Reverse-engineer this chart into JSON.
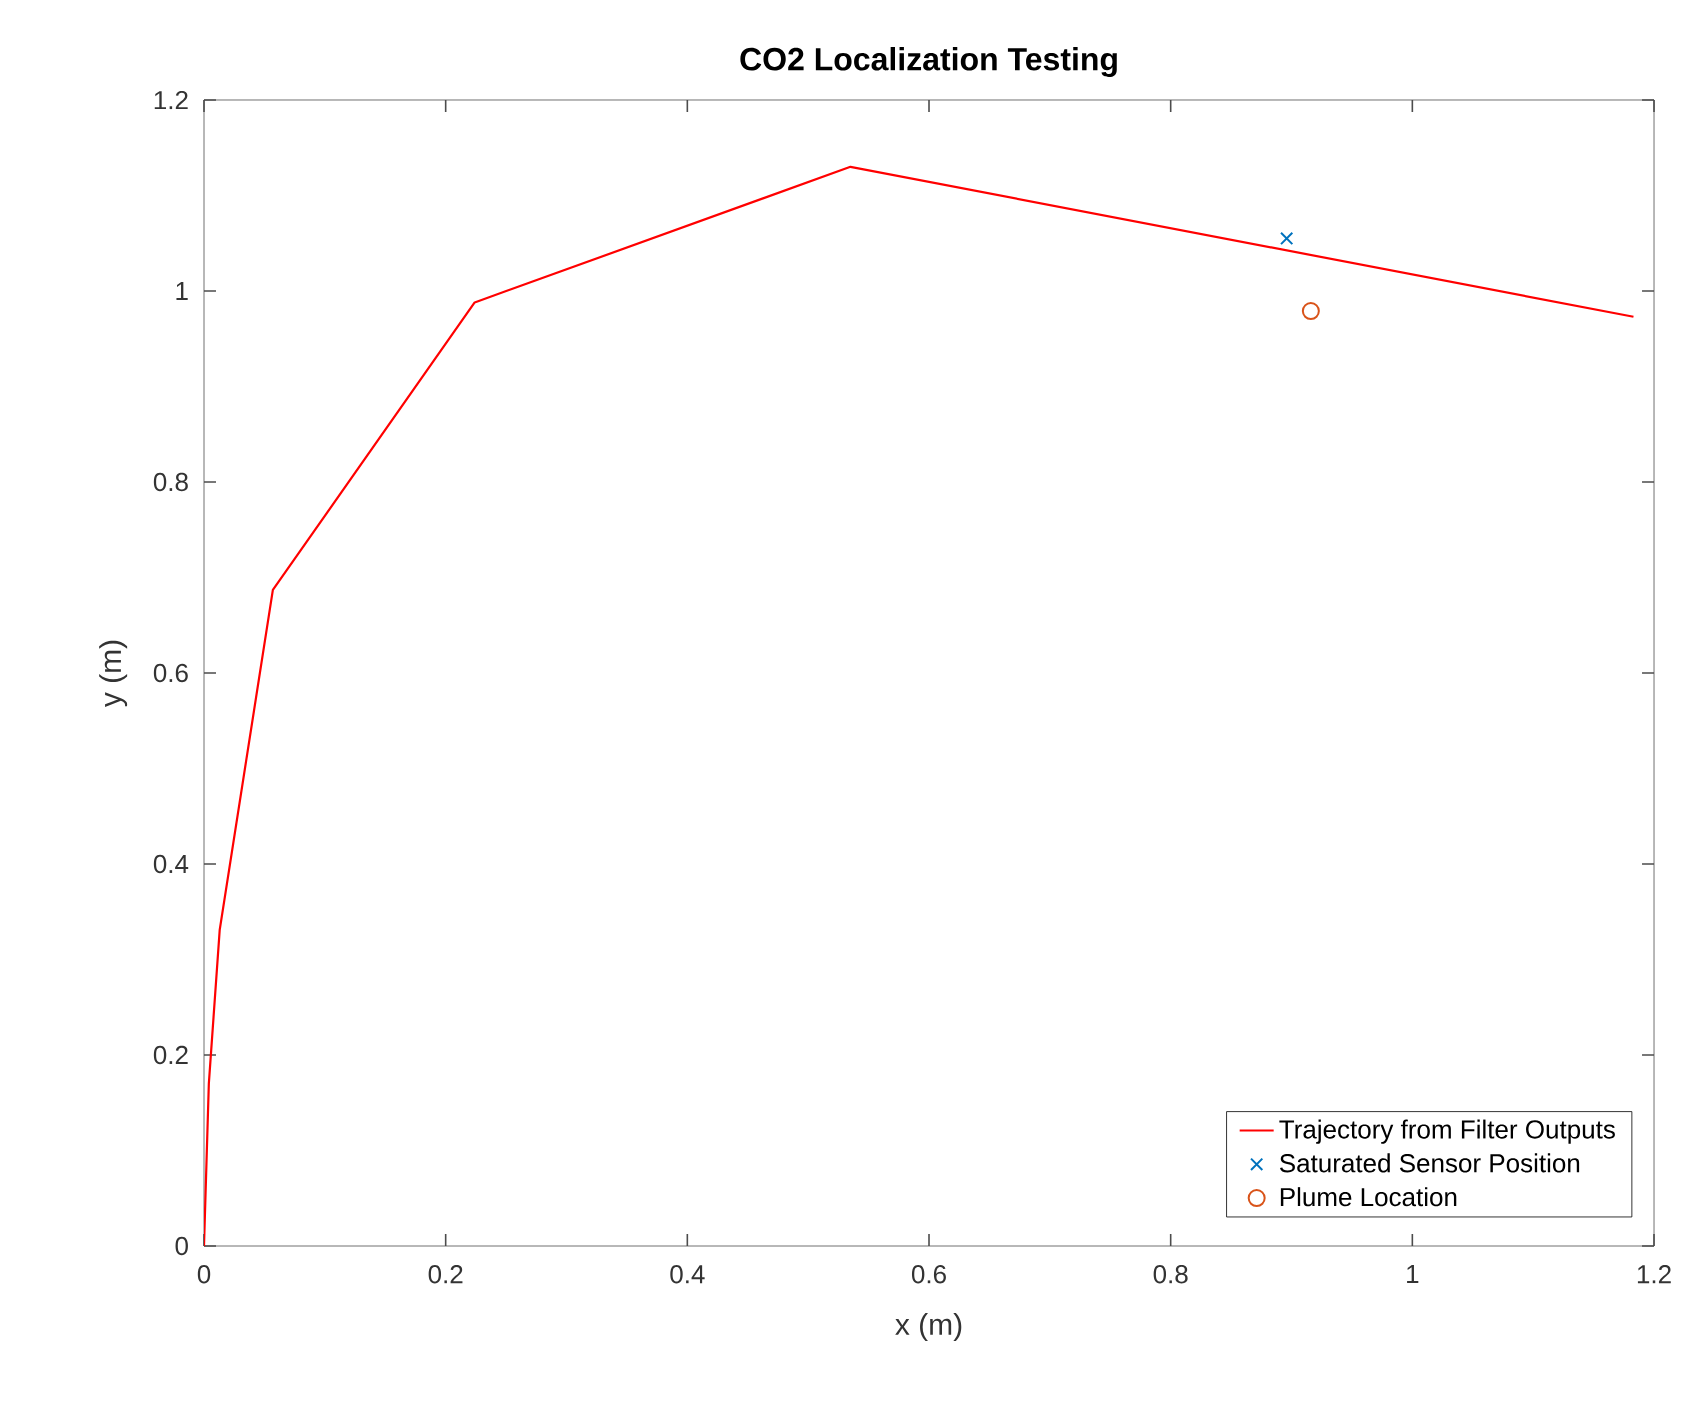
{
  "chart_data": {
    "type": "line",
    "title": "CO2 Localization Testing",
    "xlabel": "x (m)",
    "ylabel": "y (m)",
    "xlim": [
      0,
      1.2
    ],
    "ylim": [
      0,
      1.2
    ],
    "xticks": [
      0,
      0.2,
      0.4,
      0.6,
      0.8,
      1,
      1.2
    ],
    "yticks": [
      0,
      0.2,
      0.4,
      0.6,
      0.8,
      1,
      1.2
    ],
    "legend": "bottom right",
    "series": [
      {
        "name": "Trajectory from Filter Outputs",
        "color": "#ff0000",
        "marker": "none",
        "x": [
          0,
          0.004,
          0.013,
          0.057,
          0.224,
          0.535,
          1.183
        ],
        "values": [
          0,
          0.17,
          0.331,
          0.687,
          0.988,
          1.13,
          0.973
        ]
      },
      {
        "name": "Saturated Sensor Position",
        "type": "scatter",
        "color": "#0072bd",
        "marker": "cross",
        "x": [
          0.896
        ],
        "values": [
          1.055
        ]
      },
      {
        "name": "Plume Location",
        "type": "scatter",
        "color": "#d95319",
        "marker": "circle",
        "x": [
          0.916
        ],
        "values": [
          0.979
        ]
      }
    ]
  }
}
